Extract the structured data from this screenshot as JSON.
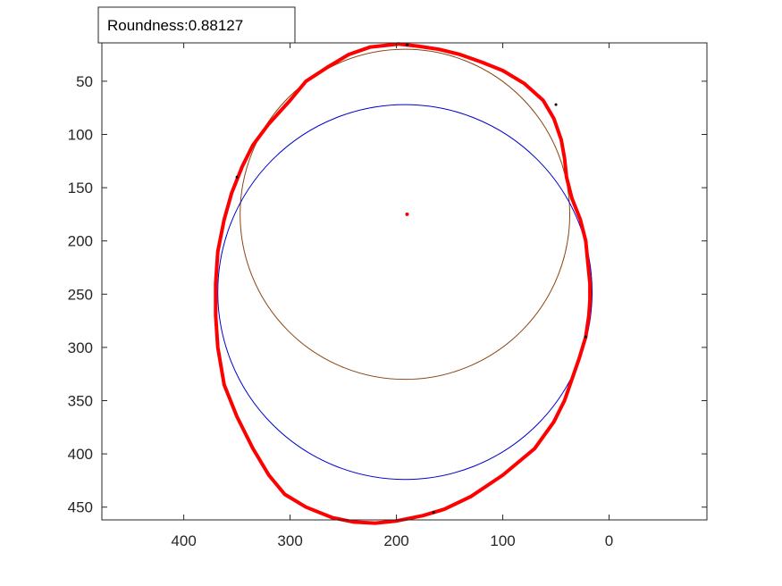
{
  "chart_data": {
    "type": "scatter",
    "title": "",
    "xlabel": "",
    "ylabel": "",
    "x_reversed": true,
    "y_reversed": true,
    "xlim": [
      -92,
      477
    ],
    "ylim": [
      14,
      462
    ],
    "grid": false,
    "x_ticks": [
      400,
      300,
      200,
      100,
      0
    ],
    "y_ticks": [
      50,
      100,
      150,
      200,
      250,
      300,
      350,
      400,
      450
    ],
    "annotation": {
      "text": "Roundness:0.88127"
    },
    "colors": {
      "contour": "#ff0000",
      "gap": "#000000",
      "circle_small": "#8b4513",
      "circle_large": "#0000cd",
      "center": "#ff0000",
      "axes": "#262626"
    },
    "center": {
      "x": 190,
      "y": 175
    },
    "circles": [
      {
        "name": "",
        "cx": 192,
        "cy": 175,
        "r": 155,
        "color": "#8b4513"
      },
      {
        "name": "",
        "cx": 192,
        "cy": 248,
        "r": 176,
        "color": "#0000cd"
      }
    ],
    "contour": [
      [
        198,
        15
      ],
      [
        180,
        17
      ],
      [
        160,
        20
      ],
      [
        140,
        25
      ],
      [
        120,
        32
      ],
      [
        100,
        40
      ],
      [
        80,
        52
      ],
      [
        62,
        68
      ],
      [
        52,
        85
      ],
      [
        45,
        105
      ],
      [
        42,
        122
      ],
      [
        40,
        140
      ],
      [
        35,
        160
      ],
      [
        27,
        180
      ],
      [
        22,
        200
      ],
      [
        20,
        220
      ],
      [
        18,
        240
      ],
      [
        18,
        255
      ],
      [
        19,
        270
      ],
      [
        22,
        290
      ],
      [
        28,
        310
      ],
      [
        35,
        330
      ],
      [
        42,
        350
      ],
      [
        52,
        370
      ],
      [
        70,
        395
      ],
      [
        100,
        420
      ],
      [
        130,
        440
      ],
      [
        155,
        452
      ],
      [
        175,
        458
      ],
      [
        200,
        463
      ],
      [
        220,
        465
      ],
      [
        240,
        464
      ],
      [
        260,
        460
      ],
      [
        285,
        450
      ],
      [
        305,
        438
      ],
      [
        320,
        420
      ],
      [
        335,
        395
      ],
      [
        350,
        365
      ],
      [
        362,
        335
      ],
      [
        368,
        300
      ],
      [
        370,
        270
      ],
      [
        370,
        240
      ],
      [
        368,
        210
      ],
      [
        362,
        180
      ],
      [
        355,
        155
      ],
      [
        345,
        130
      ],
      [
        335,
        110
      ],
      [
        320,
        90
      ],
      [
        300,
        68
      ],
      [
        285,
        50
      ],
      [
        265,
        37
      ],
      [
        245,
        25
      ],
      [
        225,
        18
      ],
      [
        198,
        15
      ]
    ],
    "gaps": [
      [
        190,
        16
      ],
      [
        50,
        72
      ],
      [
        350,
        140
      ],
      [
        22,
        290
      ],
      [
        165,
        455
      ]
    ]
  }
}
